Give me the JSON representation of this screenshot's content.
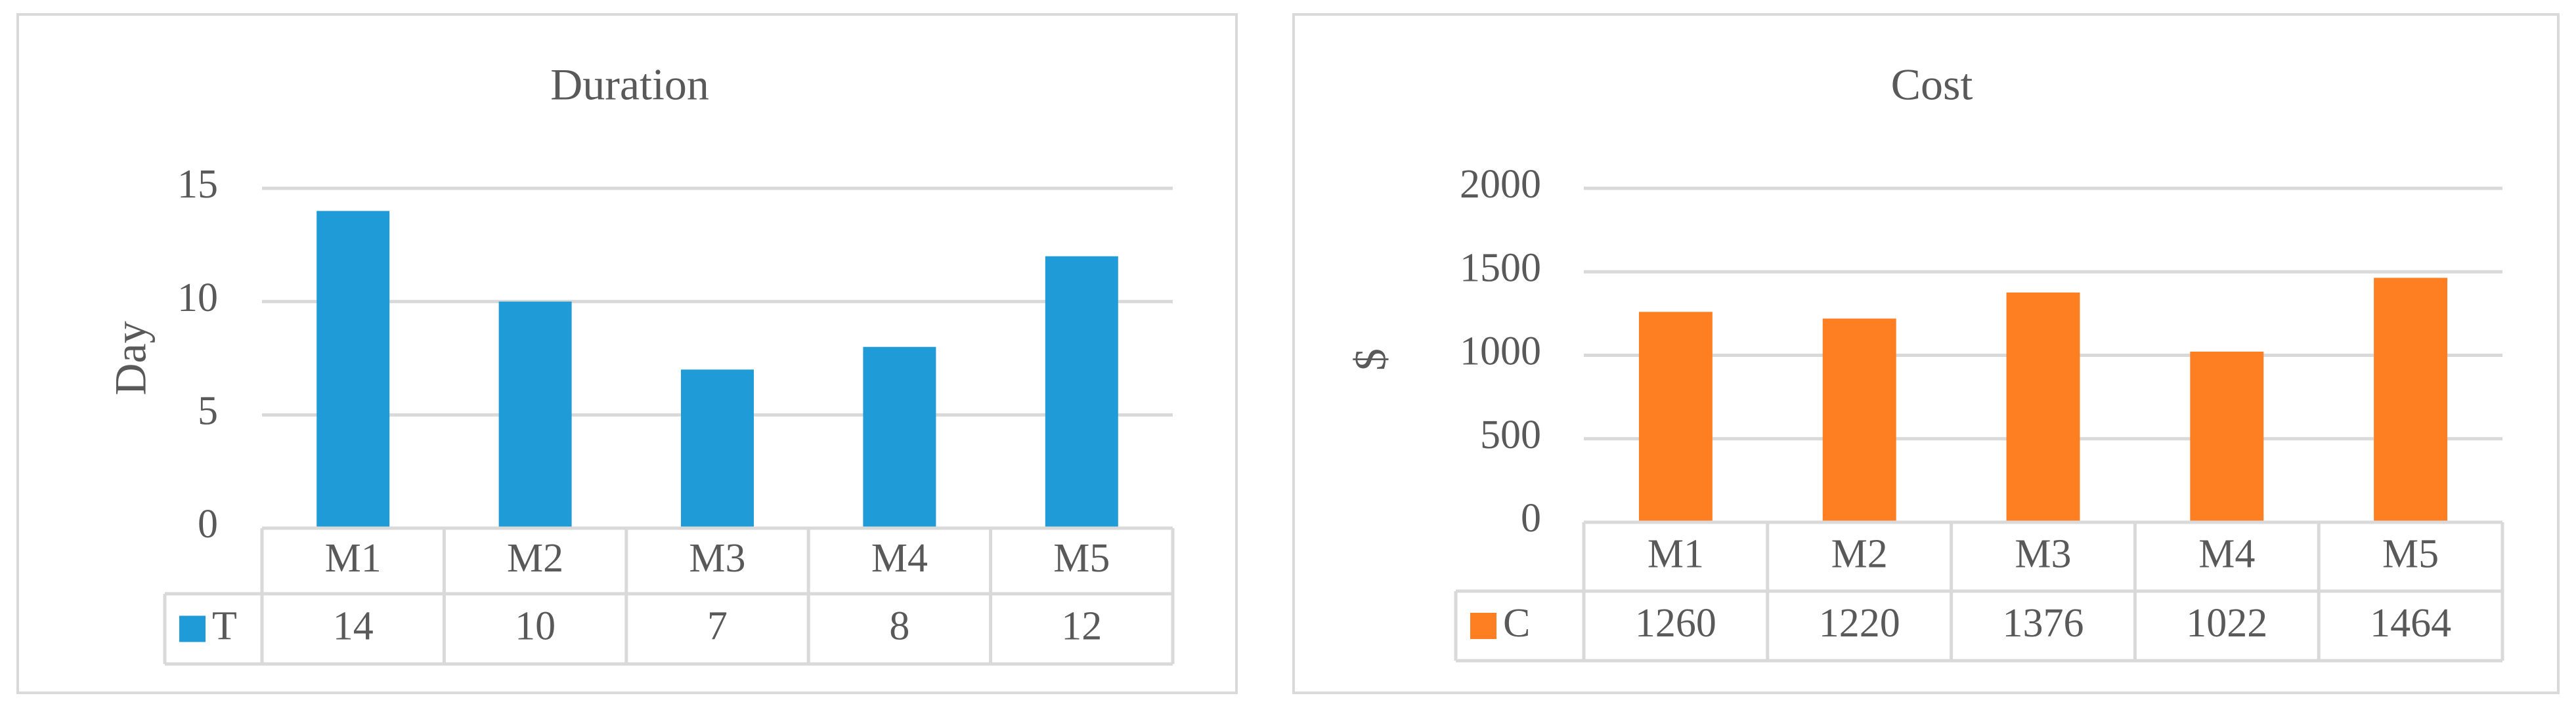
{
  "chart_data": [
    {
      "type": "bar",
      "title": "Duration",
      "xlabel": "",
      "ylabel": "Day",
      "categories": [
        "M1",
        "M2",
        "M3",
        "M4",
        "M5"
      ],
      "series": [
        {
          "name": "T",
          "values": [
            14,
            10,
            7,
            8,
            12
          ]
        }
      ],
      "ylim": [
        0,
        15
      ],
      "yticks": [
        0,
        5,
        10,
        15
      ],
      "grid": true,
      "legend": "data-table",
      "colors": {
        "bar": "#1f9bd7"
      }
    },
    {
      "type": "bar",
      "title": "Cost",
      "xlabel": "",
      "ylabel": "$",
      "categories": [
        "M1",
        "M2",
        "M3",
        "M4",
        "M5"
      ],
      "series": [
        {
          "name": "C",
          "values": [
            1260,
            1220,
            1376,
            1022,
            1464
          ]
        }
      ],
      "ylim": [
        0,
        2000
      ],
      "yticks": [
        0,
        500,
        1000,
        1500,
        2000
      ],
      "grid": true,
      "legend": "data-table",
      "colors": {
        "bar": "#fd7f22"
      }
    }
  ]
}
